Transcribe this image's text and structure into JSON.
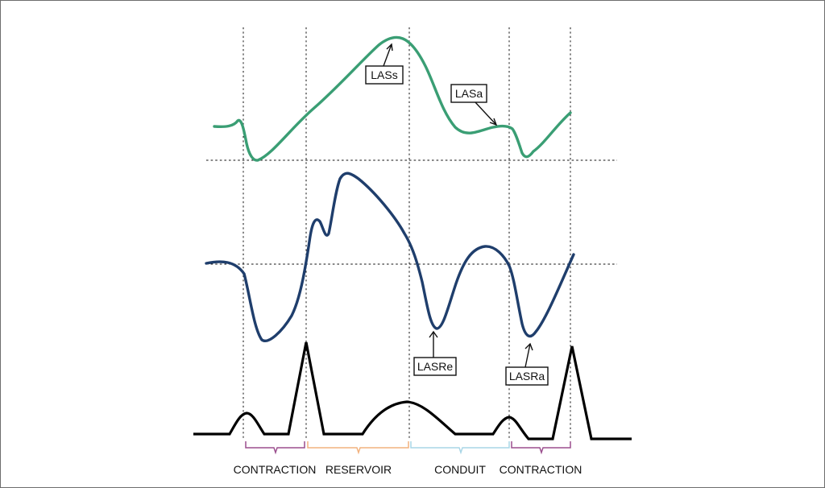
{
  "curves": {
    "strain": {
      "color": "#3a9e74"
    },
    "strain_rate": {
      "color": "#1f3e6c"
    },
    "ecg": {
      "color": "#000000"
    }
  },
  "labels": {
    "las_s": "LASs",
    "las_a": "LASa",
    "lasr_e": "LASRe",
    "lasr_a": "LASRa"
  },
  "phases": [
    {
      "label": "CONTRACTION",
      "color": "#9b4f8e"
    },
    {
      "label": "RESERVOIR",
      "color": "#f2b27e"
    },
    {
      "label": "CONDUIT",
      "color": "#a9d6e6"
    },
    {
      "label": "CONTRACTION",
      "color": "#9b4f8e"
    }
  ]
}
